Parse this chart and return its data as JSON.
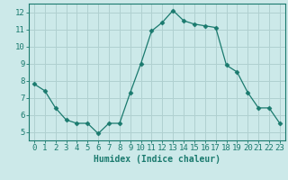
{
  "x": [
    0,
    1,
    2,
    3,
    4,
    5,
    6,
    7,
    8,
    9,
    10,
    11,
    12,
    13,
    14,
    15,
    16,
    17,
    18,
    19,
    20,
    21,
    22,
    23
  ],
  "y": [
    7.8,
    7.4,
    6.4,
    5.7,
    5.5,
    5.5,
    4.9,
    5.5,
    5.5,
    7.3,
    9.0,
    10.9,
    11.4,
    12.1,
    11.5,
    11.3,
    11.2,
    11.1,
    8.9,
    8.5,
    7.3,
    6.4,
    6.4,
    5.5
  ],
  "line_color": "#1a7a6e",
  "marker": "D",
  "marker_size": 2.5,
  "bg_color": "#cce9e9",
  "grid_color": "#b0d0d0",
  "axis_color": "#1a7a6e",
  "xlabel": "Humidex (Indice chaleur)",
  "xlim": [
    -0.5,
    23.5
  ],
  "ylim": [
    4.5,
    12.5
  ],
  "yticks": [
    5,
    6,
    7,
    8,
    9,
    10,
    11,
    12
  ],
  "xticks": [
    0,
    1,
    2,
    3,
    4,
    5,
    6,
    7,
    8,
    9,
    10,
    11,
    12,
    13,
    14,
    15,
    16,
    17,
    18,
    19,
    20,
    21,
    22,
    23
  ],
  "label_fontsize": 7,
  "tick_fontsize": 6.5
}
